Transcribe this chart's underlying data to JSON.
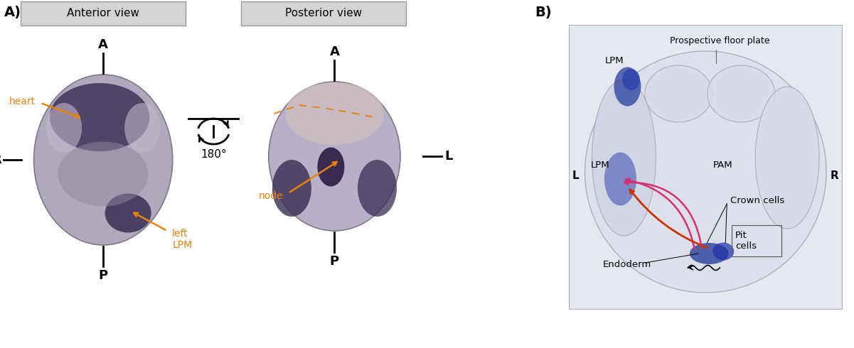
{
  "fig_width": 12.01,
  "fig_height": 4.9,
  "dpi": 100,
  "background_color": "#ffffff",
  "panel_A_label": "A)",
  "panel_B_label": "B)",
  "anterior_view_label": "Anterior view",
  "posterior_view_label": "Posterior view",
  "box_facecolor": "#d4d4d4",
  "box_edgecolor": "#999999",
  "orange_color": "#E8820A",
  "pink_color": "#D63070",
  "red_color": "#CC3300",
  "dark_color": "#222222",
  "axis_label_A": "A",
  "axis_label_P": "P",
  "axis_label_R": "R",
  "axis_label_L": "L",
  "rotation_label": "180°",
  "heart_label": "heart",
  "left_lpm_label": "left\nLPM",
  "node_label": "node",
  "prospective_floor_plate_label": "Prospective floor plate",
  "lpm_top_label": "LPM",
  "lpm_mid_label": "LPM",
  "pam_label": "PAM",
  "crown_cells_label": "Crown cells",
  "pit_cells_label": "Pit\ncells",
  "endoderm_label": "Endoderm",
  "cross_L_label": "L",
  "cross_R_label": "R",
  "embryo_bg": "#b8b0be",
  "embryo_dark": "#4a3860",
  "embryo_mid": "#7a6888",
  "embryo_light": "#c8c0d0",
  "histo_bg": "#e8eaf0",
  "histo_tissue": "#d0d4e0",
  "histo_blue": "#3348a0",
  "histo_blue2": "#5060b8"
}
